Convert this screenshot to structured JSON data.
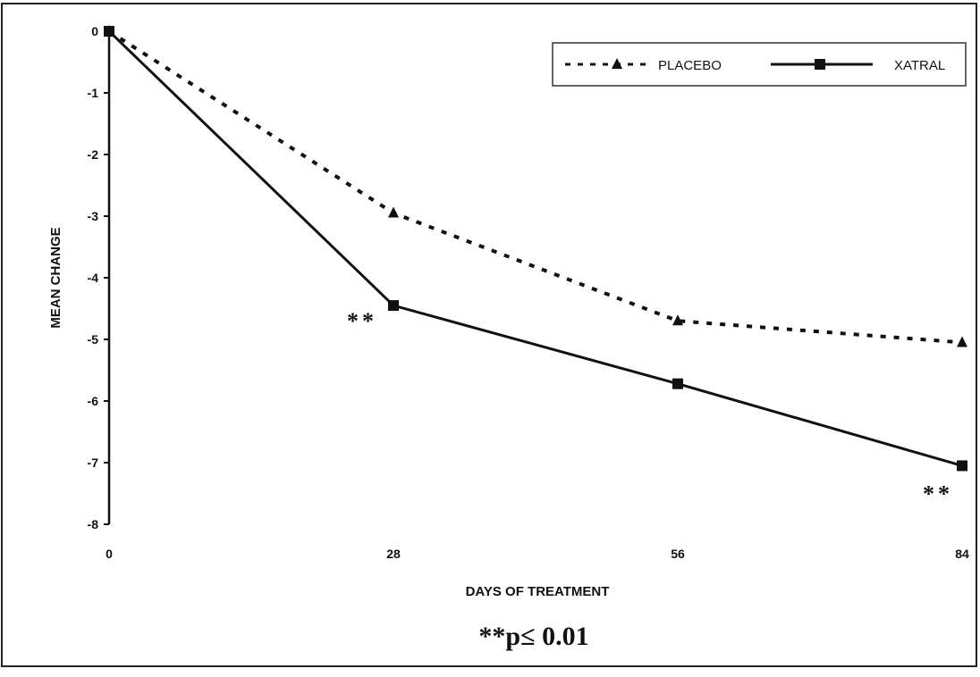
{
  "chart_data": {
    "type": "line",
    "title": "",
    "xlabel": "DAYS OF TREATMENT",
    "ylabel": "MEAN CHANGE",
    "x": [
      0,
      28,
      56,
      84
    ],
    "xticks": [
      "0",
      "28",
      "56",
      "84"
    ],
    "xlim": [
      0,
      84
    ],
    "ylim": [
      -8,
      0
    ],
    "yticks": [
      "0",
      "-1",
      "-2",
      "-3",
      "-4",
      "-5",
      "-6",
      "-7",
      "-8"
    ],
    "grid": false,
    "legend_position": "top-right",
    "series": [
      {
        "name": "PLACEBO",
        "line_style": "dotted",
        "marker": "triangle",
        "color": "#111111",
        "values": [
          0,
          -2.95,
          -4.7,
          -5.05
        ]
      },
      {
        "name": "XATRAL",
        "line_style": "solid",
        "marker": "square",
        "color": "#111111",
        "values": [
          0,
          -4.45,
          -5.72,
          -7.05
        ]
      }
    ],
    "annotations": [
      {
        "text": "**",
        "x": 28,
        "y": -4.45,
        "series": "XATRAL"
      },
      {
        "text": "**",
        "x": 84,
        "y": -7.05,
        "series": "XATRAL"
      }
    ],
    "footnote": "**p≤ 0.01"
  }
}
